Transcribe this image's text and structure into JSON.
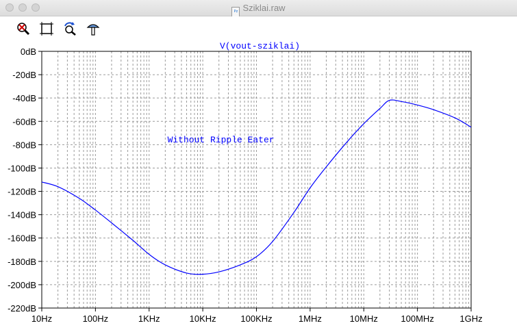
{
  "window": {
    "title": "Sziklai.raw",
    "file_icon_text": "Pz"
  },
  "toolbar": {
    "tools": [
      {
        "icon": "zoom-out-icon"
      },
      {
        "icon": "autorange-icon"
      },
      {
        "icon": "undo-zoom-icon"
      },
      {
        "icon": "probe-icon"
      }
    ]
  },
  "colors": {
    "trace": "#0000ff",
    "grid": "#9a9a9a",
    "axis": "#000000"
  },
  "chart_data": {
    "type": "line",
    "title": "V(vout-sziklai)",
    "annotation": "Without Ripple Eater",
    "x_scale": "log",
    "xlim": [
      10,
      1000000000
    ],
    "x_ticks": [
      {
        "value": 10,
        "label": "10Hz"
      },
      {
        "value": 100,
        "label": "100Hz"
      },
      {
        "value": 1000,
        "label": "1KHz"
      },
      {
        "value": 10000,
        "label": "10KHz"
      },
      {
        "value": 100000,
        "label": "100KHz"
      },
      {
        "value": 1000000,
        "label": "1MHz"
      },
      {
        "value": 10000000,
        "label": "10MHz"
      },
      {
        "value": 100000000,
        "label": "100MHz"
      },
      {
        "value": 1000000000,
        "label": "1GHz"
      }
    ],
    "ylim": [
      -220,
      0
    ],
    "y_ticks": [
      {
        "value": 0,
        "label": "0dB"
      },
      {
        "value": -20,
        "label": "-20dB"
      },
      {
        "value": -40,
        "label": "-40dB"
      },
      {
        "value": -60,
        "label": "-60dB"
      },
      {
        "value": -80,
        "label": "-80dB"
      },
      {
        "value": -100,
        "label": "-100dB"
      },
      {
        "value": -120,
        "label": "-120dB"
      },
      {
        "value": -140,
        "label": "-140dB"
      },
      {
        "value": -160,
        "label": "-160dB"
      },
      {
        "value": -180,
        "label": "-180dB"
      },
      {
        "value": -200,
        "label": "-200dB"
      },
      {
        "value": -220,
        "label": "-220dB"
      }
    ],
    "grid": true,
    "series": [
      {
        "name": "V(vout-sziklai)",
        "x": [
          10,
          20,
          50,
          100,
          200,
          500,
          1000,
          2000,
          5000,
          10000,
          20000,
          50000,
          100000,
          200000,
          500000,
          1000000,
          2000000,
          5000000,
          10000000,
          20000000,
          30000000,
          50000000,
          100000000,
          200000000,
          500000000,
          1000000000
        ],
        "y": [
          -112,
          -116,
          -126,
          -136,
          -147,
          -162,
          -174,
          -183,
          -190,
          -191,
          -189,
          -183,
          -176,
          -163,
          -138,
          -117,
          -99,
          -77,
          -62,
          -49,
          -42,
          -43,
          -46,
          -50,
          -57,
          -65
        ]
      }
    ]
  }
}
